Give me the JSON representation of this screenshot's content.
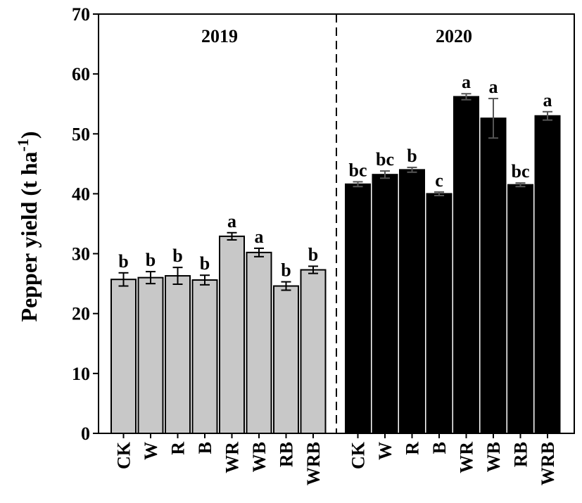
{
  "chart_data": {
    "type": "bar",
    "ylabel": "Pepper yield (t ha",
    "ylabel_superscript": "-1",
    "ylabel_close": ")",
    "ylim": [
      0,
      70
    ],
    "yticks": [
      "0",
      "10",
      "20",
      "30",
      "40",
      "50",
      "60",
      "70"
    ],
    "yticks_values": [
      0,
      10,
      20,
      30,
      40,
      50,
      60,
      70
    ],
    "colors": {
      "2019": "#c8c8c8",
      "2020": "#000000"
    },
    "panels": [
      {
        "name": "2019",
        "categories": [
          "CK",
          "W",
          "R",
          "B",
          "WR",
          "WB",
          "RB",
          "WRB"
        ],
        "values": [
          25.7,
          26.0,
          26.3,
          25.6,
          32.9,
          30.2,
          24.6,
          27.3
        ],
        "errors": [
          1.1,
          1.0,
          1.4,
          0.8,
          0.6,
          0.7,
          0.7,
          0.6
        ],
        "letters": [
          "b",
          "b",
          "b",
          "b",
          "a",
          "a",
          "b",
          "b"
        ]
      },
      {
        "name": "2020",
        "categories": [
          "CK",
          "W",
          "R",
          "B",
          "WR",
          "WB",
          "RB",
          "WRB"
        ],
        "values": [
          41.6,
          43.2,
          44.0,
          40.0,
          56.2,
          52.6,
          41.5,
          53.0
        ],
        "errors": [
          0.4,
          0.6,
          0.4,
          0.3,
          0.5,
          3.3,
          0.3,
          0.7
        ],
        "letters": [
          "bc",
          "bc",
          "b",
          "c",
          "a",
          "a",
          "bc",
          "a"
        ]
      }
    ]
  }
}
